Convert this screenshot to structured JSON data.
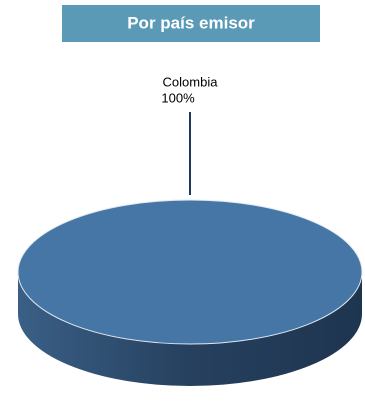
{
  "chart_data": {
    "type": "pie",
    "title": "Por país emisor",
    "categories": [
      "Colombia"
    ],
    "values": [
      100
    ],
    "value_labels": [
      "100%"
    ],
    "color": "#4676a5"
  }
}
